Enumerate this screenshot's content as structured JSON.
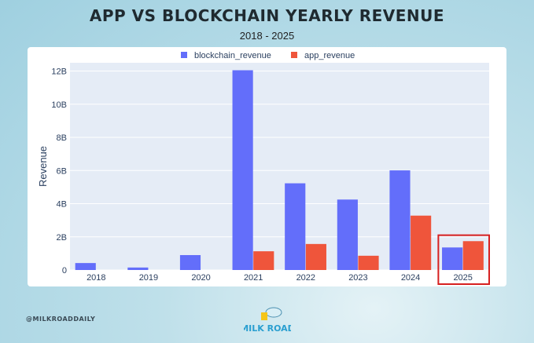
{
  "title": "APP VS BLOCKCHAIN YEARLY REVENUE",
  "subtitle": "2018 - 2025",
  "handle": "@MILKROADDAILY",
  "logo_text": "MILK ROAD",
  "chart_data": {
    "type": "bar",
    "categories": [
      "2018",
      "2019",
      "2020",
      "2021",
      "2022",
      "2023",
      "2024",
      "2025"
    ],
    "series": [
      {
        "name": "blockchain_revenue",
        "color": "#636efa",
        "values": [
          0.42,
          0.15,
          0.9,
          12.05,
          5.23,
          4.25,
          6.01,
          1.36
        ]
      },
      {
        "name": "app_revenue",
        "color": "#ef553b",
        "values": [
          0,
          0,
          0,
          1.13,
          1.57,
          0.86,
          3.28,
          1.74
        ]
      }
    ],
    "unit": "B",
    "ylabel": "Revenue",
    "ylim": [
      0,
      12.5
    ],
    "yticks": [
      0,
      2,
      4,
      6,
      8,
      10,
      12
    ],
    "ytick_labels": [
      "0",
      "2B",
      "4B",
      "6B",
      "8B",
      "10B",
      "12B"
    ],
    "grid": true,
    "legend": "top-center",
    "highlight": {
      "category": "2025",
      "color": "#d62020"
    }
  }
}
